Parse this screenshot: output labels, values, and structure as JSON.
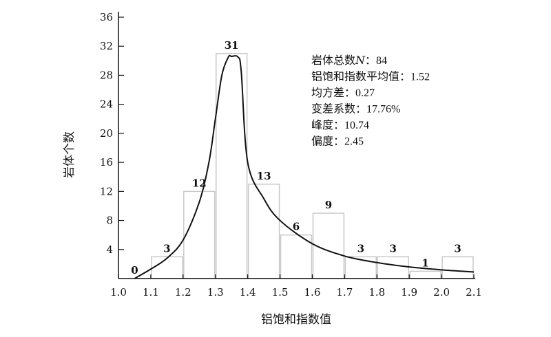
{
  "chart_data": {
    "type": "bar",
    "xlabel": "铝饱和指数值",
    "ylabel": "岩体个数",
    "ylim": [
      0,
      36
    ],
    "yticks": [
      4,
      8,
      12,
      16,
      20,
      24,
      28,
      32,
      36
    ],
    "xlim": [
      1.0,
      2.1
    ],
    "xticks": [
      1.0,
      1.1,
      1.2,
      1.3,
      1.4,
      1.5,
      1.6,
      1.7,
      1.8,
      1.9,
      2.0,
      2.1
    ],
    "bins": [
      {
        "start": 1.0,
        "end": 1.1,
        "value": 0
      },
      {
        "start": 1.1,
        "end": 1.2,
        "value": 3
      },
      {
        "start": 1.2,
        "end": 1.3,
        "value": 12
      },
      {
        "start": 1.3,
        "end": 1.4,
        "value": 31
      },
      {
        "start": 1.4,
        "end": 1.5,
        "value": 13
      },
      {
        "start": 1.5,
        "end": 1.6,
        "value": 6
      },
      {
        "start": 1.6,
        "end": 1.7,
        "value": 9
      },
      {
        "start": 1.7,
        "end": 1.8,
        "value": 3
      },
      {
        "start": 1.8,
        "end": 1.9,
        "value": 3
      },
      {
        "start": 1.9,
        "end": 2.0,
        "value": 1
      },
      {
        "start": 2.0,
        "end": 2.1,
        "value": 3
      }
    ],
    "fitted_curve": {
      "x": [
        1.05,
        1.1,
        1.15,
        1.2,
        1.25,
        1.28,
        1.3,
        1.32,
        1.34,
        1.35,
        1.37,
        1.38,
        1.4,
        1.45,
        1.5,
        1.6,
        1.7,
        1.8,
        1.9,
        2.0,
        2.1
      ],
      "y": [
        0.0,
        1.3,
        2.8,
        5.3,
        10.5,
        16.0,
        22.0,
        28.0,
        30.5,
        30.6,
        30.5,
        28.5,
        16.0,
        11.0,
        8.0,
        4.8,
        3.1,
        2.2,
        1.6,
        1.2,
        0.9
      ]
    },
    "stats": [
      {
        "label": "岩体总数",
        "symbol": "N",
        "value": "84"
      },
      {
        "label": "铝饱和指数平均值",
        "symbol": "",
        "value": "1.52"
      },
      {
        "label": "均方差",
        "symbol": "",
        "value": "0.27"
      },
      {
        "label": "变差系数",
        "symbol": "",
        "value": "17.76%"
      },
      {
        "label": "峰度",
        "symbol": "",
        "value": "10.74"
      },
      {
        "label": "偏度",
        "symbol": "",
        "value": "2.45"
      }
    ],
    "stat_separator": "：",
    "bar_color": "#c8c8c8",
    "curve_color": "#111111",
    "grid": false
  }
}
